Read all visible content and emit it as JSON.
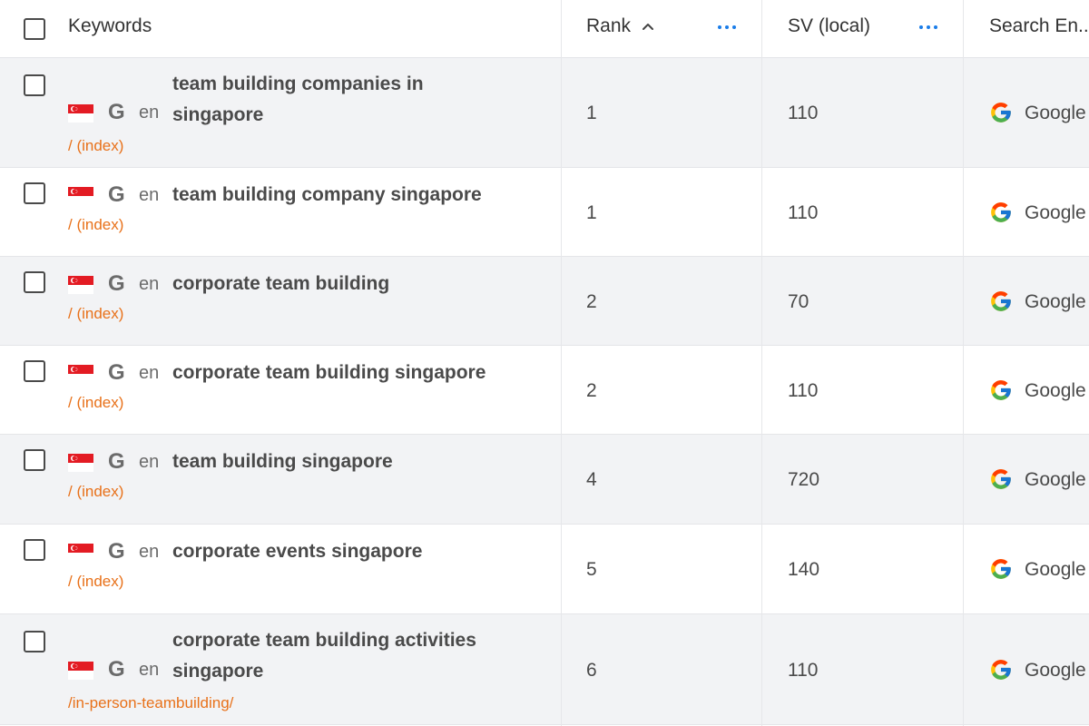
{
  "header": {
    "keywords": "Keywords",
    "rank": "Rank",
    "sv_local": "SV (local)",
    "search_engine": "Search En..."
  },
  "rows": [
    {
      "lang": "en",
      "keyword": "team building companies in singapore",
      "url": "/ (index)",
      "rank": "1",
      "sv": "110",
      "engine": "Google"
    },
    {
      "lang": "en",
      "keyword": "team building company singapore",
      "url": "/ (index)",
      "rank": "1",
      "sv": "110",
      "engine": "Google"
    },
    {
      "lang": "en",
      "keyword": "corporate team building",
      "url": "/ (index)",
      "rank": "2",
      "sv": "70",
      "engine": "Google"
    },
    {
      "lang": "en",
      "keyword": "corporate team building singapore",
      "url": "/ (index)",
      "rank": "2",
      "sv": "110",
      "engine": "Google"
    },
    {
      "lang": "en",
      "keyword": "team building singapore",
      "url": "/ (index)",
      "rank": "4",
      "sv": "720",
      "engine": "Google"
    },
    {
      "lang": "en",
      "keyword": "corporate events singapore",
      "url": "/ (index)",
      "rank": "5",
      "sv": "140",
      "engine": "Google"
    },
    {
      "lang": "en",
      "keyword": "corporate team building activities singapore",
      "url": "/in-person-teambuilding/",
      "rank": "6",
      "sv": "110",
      "engine": "Google"
    }
  ],
  "icons": {
    "country_flag": "singapore-flag-icon",
    "search_engine_letter": "G",
    "google_logo": "google-g-icon"
  },
  "colors": {
    "row_shade": "#f2f3f5",
    "url_orange": "#e8711a",
    "dots_blue": "#1a7de8"
  }
}
